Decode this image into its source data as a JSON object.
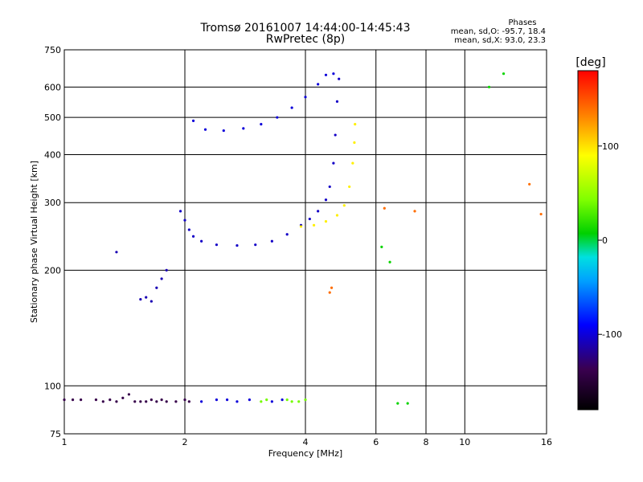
{
  "header": {
    "title_line1": "Tromsø 20161007 14:44:00-14:45:43",
    "title_line2": "RwPretec (8p)",
    "phases_label": "Phases",
    "phases_o": "mean, sd,O: -95.7, 18.4",
    "phases_x": "mean, sd,X:  93.0, 23.3"
  },
  "colorbar": {
    "label": "[deg]",
    "range": [
      -180,
      180
    ],
    "tick_labels": [
      "100",
      "0",
      "-100"
    ],
    "tick_values": [
      100,
      0,
      -100
    ]
  },
  "chart_data": {
    "type": "scatter",
    "title": "Tromsø 20161007 14:44:00-14:45:43",
    "subtitle": "RwPretec (8p)",
    "xlabel": "Frequency [MHz]",
    "ylabel": "Stationary phase Virtual Height [km]",
    "xscale": "log",
    "yscale": "log",
    "xlim": [
      1,
      16
    ],
    "ylim": [
      75,
      750
    ],
    "x_ticks": [
      1,
      2,
      4,
      6,
      8,
      10,
      16
    ],
    "x_tick_labels": [
      "1",
      "2",
      "4",
      "6",
      "8",
      "10",
      "16"
    ],
    "y_ticks": [
      75,
      100,
      200,
      300,
      400,
      500,
      600,
      750
    ],
    "y_tick_labels": [
      "75",
      "100",
      "200",
      "300",
      "400",
      "500",
      "600",
      "750"
    ],
    "grid": true,
    "color_encodes": "phase (deg)",
    "series": [
      {
        "color_phase": -140,
        "points": [
          [
            1.0,
            92
          ],
          [
            1.05,
            92
          ],
          [
            1.1,
            92
          ],
          [
            1.2,
            92
          ],
          [
            1.25,
            91
          ],
          [
            1.3,
            92
          ],
          [
            1.35,
            91
          ],
          [
            1.4,
            93
          ],
          [
            1.45,
            95
          ],
          [
            1.5,
            91
          ],
          [
            1.55,
            91
          ],
          [
            1.6,
            91
          ],
          [
            1.65,
            92
          ],
          [
            1.7,
            91
          ],
          [
            1.75,
            92
          ],
          [
            1.8,
            91
          ],
          [
            1.9,
            91
          ],
          [
            2.0,
            92
          ],
          [
            2.05,
            91
          ]
        ]
      },
      {
        "color_phase": -100,
        "points": [
          [
            2.2,
            91
          ],
          [
            2.4,
            92
          ],
          [
            2.55,
            92
          ],
          [
            2.7,
            91
          ],
          [
            2.9,
            92
          ],
          [
            3.3,
            91
          ],
          [
            3.5,
            92
          ]
        ]
      },
      {
        "color_phase": 40,
        "points": [
          [
            3.1,
            91
          ],
          [
            3.2,
            92
          ],
          [
            3.6,
            92
          ],
          [
            3.7,
            91
          ],
          [
            3.85,
            91
          ],
          [
            4.0,
            92
          ]
        ]
      },
      {
        "color_phase": -110,
        "points": [
          [
            1.35,
            223
          ],
          [
            1.55,
            168
          ],
          [
            1.6,
            170
          ],
          [
            1.65,
            166
          ],
          [
            1.7,
            180
          ],
          [
            1.75,
            190
          ],
          [
            1.8,
            200
          ]
        ]
      },
      {
        "color_phase": -105,
        "points": [
          [
            1.95,
            285
          ],
          [
            2.0,
            270
          ],
          [
            2.05,
            255
          ],
          [
            2.1,
            245
          ],
          [
            2.2,
            238
          ],
          [
            2.4,
            233
          ],
          [
            2.7,
            232
          ],
          [
            3.0,
            233
          ],
          [
            3.3,
            238
          ],
          [
            3.6,
            248
          ],
          [
            3.9,
            262
          ],
          [
            4.1,
            272
          ],
          [
            4.3,
            285
          ],
          [
            4.5,
            305
          ],
          [
            4.6,
            330
          ],
          [
            4.7,
            380
          ],
          [
            4.75,
            450
          ],
          [
            4.8,
            550
          ],
          [
            4.85,
            630
          ]
        ]
      },
      {
        "color_phase": -100,
        "points": [
          [
            2.1,
            490
          ],
          [
            2.25,
            465
          ],
          [
            2.5,
            462
          ],
          [
            2.8,
            468
          ],
          [
            3.1,
            480
          ],
          [
            3.4,
            500
          ],
          [
            3.7,
            530
          ],
          [
            4.0,
            565
          ],
          [
            4.3,
            610
          ],
          [
            4.5,
            645
          ],
          [
            4.7,
            650
          ]
        ]
      },
      {
        "color_phase": 95,
        "points": [
          [
            3.9,
            260
          ],
          [
            4.2,
            262
          ],
          [
            4.5,
            268
          ],
          [
            4.8,
            278
          ],
          [
            5.0,
            295
          ],
          [
            5.15,
            330
          ],
          [
            5.25,
            380
          ],
          [
            5.3,
            430
          ],
          [
            5.32,
            480
          ]
        ]
      },
      {
        "color_phase": 140,
        "points": [
          [
            4.6,
            175
          ],
          [
            4.65,
            180
          ],
          [
            6.3,
            290
          ],
          [
            7.5,
            285
          ],
          [
            14.5,
            335
          ],
          [
            15.5,
            280
          ]
        ]
      },
      {
        "color_phase": 10,
        "points": [
          [
            6.8,
            90
          ],
          [
            7.2,
            90
          ],
          [
            6.2,
            230
          ],
          [
            6.5,
            210
          ],
          [
            11.5,
            600
          ],
          [
            12.5,
            650
          ]
        ]
      }
    ]
  }
}
